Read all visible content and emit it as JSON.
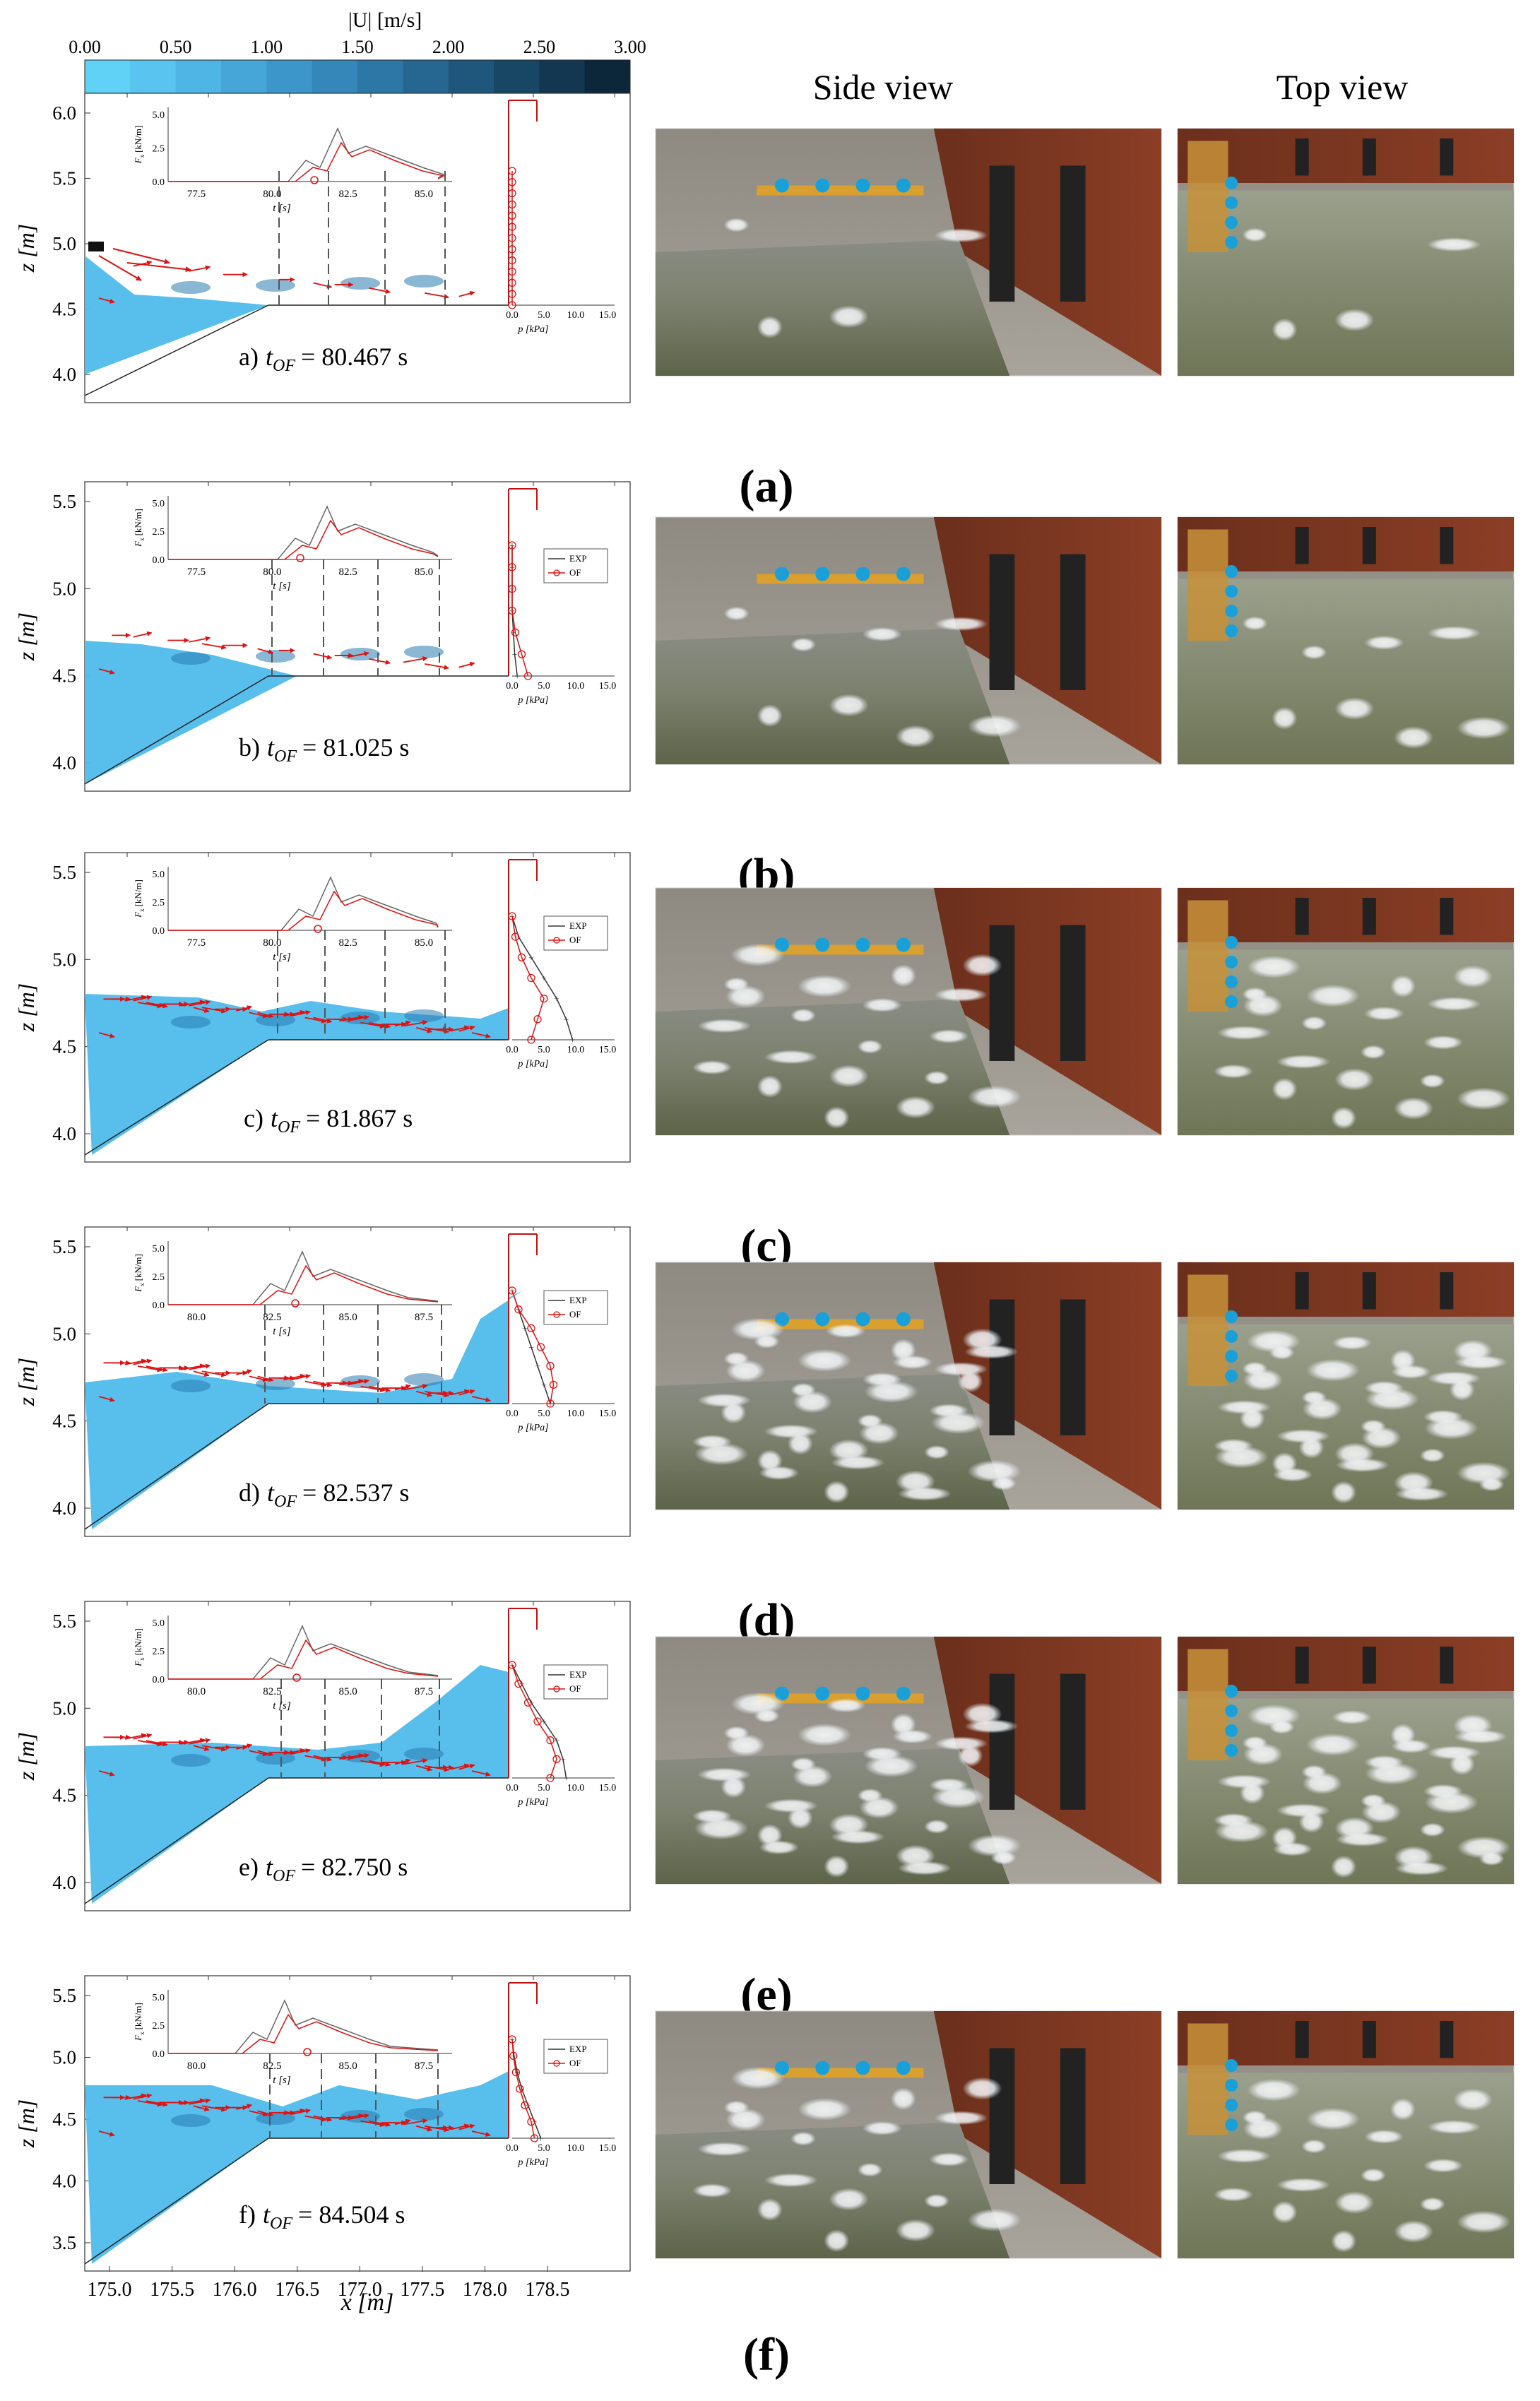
{
  "colorbar": {
    "title": "|U| [m/s]",
    "ticks": [
      "0.00",
      "0.50",
      "1.00",
      "1.50",
      "2.00",
      "2.50",
      "3.00"
    ],
    "colors": [
      "#5fd2f6",
      "#58c4ef",
      "#4fb5e4",
      "#46a6d8",
      "#3d96ca",
      "#3587ba",
      "#2d77a6",
      "#266792",
      "#1f567c",
      "#184766",
      "#133750",
      "#0d273a"
    ]
  },
  "column_titles": {
    "side": "Side view",
    "top": "Top view"
  },
  "axes": {
    "z_label": "z [m]",
    "x_label": "x [m]",
    "x_ticks": [
      "175.0",
      "175.5",
      "176.0",
      "176.5",
      "177.0",
      "177.5",
      "178.0",
      "178.5"
    ],
    "p_label": "p [kPa]",
    "p_ticks": [
      "0.0",
      "5.0",
      "10.0",
      "15.0"
    ],
    "force_ylabel": "Fx [kN/m]",
    "force_ylabel_main": "F",
    "force_ylabel_sub": "x",
    "force_ylabel_unit": "[kN/m]",
    "force_yticks": [
      "0.0",
      "2.5",
      "5.0"
    ],
    "force_xlabel": "t [s]"
  },
  "legend": {
    "exp": "EXP",
    "of": "OF"
  },
  "panels": [
    {
      "id": "a",
      "tag": "a)",
      "time": "80.467 s",
      "label": "(a)",
      "zticks": [
        "6.0",
        "5.5",
        "5.0",
        "4.5",
        "4.0"
      ],
      "ftick_labels": [
        "77.5",
        "80.0",
        "82.5",
        "85.0"
      ],
      "pressure_exp": [],
      "pressure_of": [
        0,
        0,
        0,
        0,
        0,
        0,
        0,
        0,
        0,
        0,
        0,
        0,
        0
      ]
    },
    {
      "id": "b",
      "tag": "b)",
      "time": "81.025 s",
      "label": "(b)",
      "zticks": [
        "5.5",
        "5.0",
        "4.5",
        "4.0"
      ],
      "ftick_labels": [
        "77.5",
        "80.0",
        "82.5",
        "85.0"
      ],
      "pressure_exp": [
        0,
        0,
        0,
        0,
        0.2,
        0.4,
        0.8
      ],
      "pressure_of": [
        0,
        0,
        0,
        0,
        0.5,
        1.5,
        2.5
      ]
    },
    {
      "id": "c",
      "tag": "c)",
      "time": "81.867 s",
      "label": "(c)",
      "zticks": [
        "5.5",
        "5.0",
        "4.5",
        "4.0"
      ],
      "ftick_labels": [
        "77.5",
        "80.0",
        "82.5",
        "85.0"
      ],
      "pressure_exp": [
        0,
        1,
        3,
        5,
        7,
        8.5,
        9.5
      ],
      "pressure_of": [
        0,
        0.5,
        1.5,
        3,
        5,
        4,
        3
      ]
    },
    {
      "id": "d",
      "tag": "d)",
      "time": "82.537 s",
      "label": "(d)",
      "zticks": [
        "5.5",
        "5.0",
        "4.5",
        "4.0"
      ],
      "ftick_labels": [
        "80.0",
        "82.5",
        "85.0",
        "87.5"
      ],
      "pressure_exp": [
        0,
        1,
        2,
        3,
        4,
        5,
        6
      ],
      "pressure_of": [
        0,
        1,
        3,
        4.5,
        6,
        6.5,
        6
      ]
    },
    {
      "id": "e",
      "tag": "e)",
      "time": "82.750 s",
      "label": "(e)",
      "zticks": [
        "5.5",
        "5.0",
        "4.5",
        "4.0"
      ],
      "ftick_labels": [
        "80.0",
        "82.5",
        "85.0",
        "87.5"
      ],
      "pressure_exp": [
        0,
        1.5,
        3,
        5,
        7,
        8,
        8.5
      ],
      "pressure_of": [
        0,
        1,
        2.5,
        4,
        6,
        7,
        6
      ]
    },
    {
      "id": "f",
      "tag": "f)",
      "time": "84.504 s",
      "label": "(f)",
      "zticks": [
        "5.5",
        "5.0",
        "4.5",
        "4.0",
        "3.5"
      ],
      "ftick_labels": [
        "80.0",
        "82.5",
        "85.0",
        "87.5"
      ],
      "pressure_exp": [
        0,
        0.3,
        0.8,
        1.5,
        2.5,
        3.5,
        4.5
      ],
      "pressure_of": [
        0,
        0.2,
        0.6,
        1.2,
        2,
        3,
        3.5
      ]
    }
  ]
}
